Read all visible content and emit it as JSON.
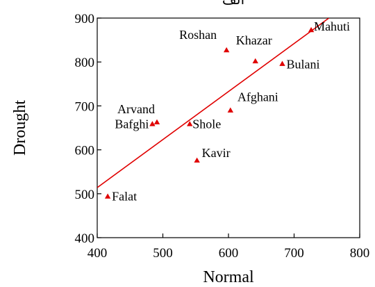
{
  "chart_data": {
    "type": "scatter",
    "title": "الف",
    "xlabel": "Normal",
    "ylabel": "Drought",
    "xlim": [
      400,
      800
    ],
    "ylim": [
      400,
      900
    ],
    "xticks": [
      400,
      500,
      600,
      700,
      800
    ],
    "yticks": [
      400,
      500,
      600,
      700,
      800,
      900
    ],
    "grid": false,
    "legend": "none",
    "marker_color": "#e00000",
    "line_color": "#e00000",
    "points": [
      {
        "label": "Mahuti",
        "x": 726,
        "y": 873
      },
      {
        "label": "Roshan",
        "x": 597,
        "y": 827
      },
      {
        "label": "Khazar",
        "x": 641,
        "y": 802
      },
      {
        "label": "Bulani",
        "x": 682,
        "y": 796
      },
      {
        "label": "Afghani",
        "x": 603,
        "y": 690
      },
      {
        "label": "Arvand",
        "x": 491,
        "y": 663
      },
      {
        "label": "Bafghi",
        "x": 484,
        "y": 659
      },
      {
        "label": "Shole",
        "x": 541,
        "y": 659
      },
      {
        "label": "Kavir",
        "x": 552,
        "y": 576
      },
      {
        "label": "Falat",
        "x": 416,
        "y": 494
      }
    ],
    "fit_line": {
      "x": [
        400,
        753
      ],
      "y": [
        514,
        900
      ]
    }
  }
}
